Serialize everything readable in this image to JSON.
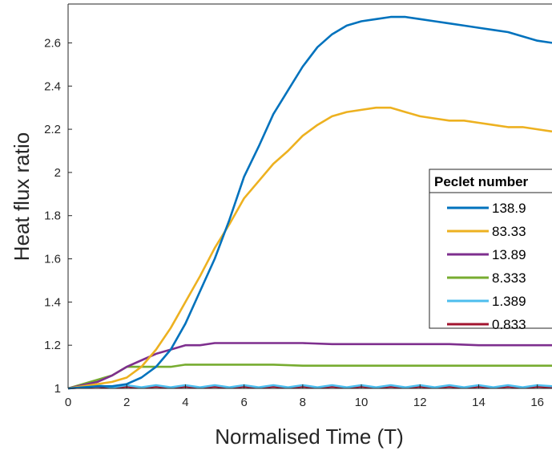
{
  "chart_data": {
    "type": "line",
    "xlabel": "Normalised Time (T)",
    "ylabel": "Heat flux ratio",
    "xlim": [
      0,
      16.5
    ],
    "ylim": [
      1,
      2.78
    ],
    "xticks": [
      "0",
      "2",
      "4",
      "6",
      "8",
      "10",
      "12",
      "14",
      "16"
    ],
    "yticks": [
      "1",
      "1.2",
      "1.4",
      "1.6",
      "1.8",
      "2",
      "2.2",
      "2.4",
      "2.6"
    ],
    "legend": {
      "title": "Peclet number",
      "placement": "right",
      "entries": [
        "138.9",
        "83.33",
        "13.89",
        "8.333",
        "1.389",
        "0.833"
      ]
    },
    "grid": false,
    "series": [
      {
        "name": "138.9",
        "color": "#0072BD",
        "x": [
          0,
          1,
          1.5,
          2,
          2.5,
          3,
          3.5,
          4,
          4.5,
          5,
          5.5,
          6,
          6.5,
          7,
          7.5,
          8,
          8.5,
          9,
          9.5,
          10,
          10.5,
          11,
          11.5,
          12,
          12.5,
          13,
          13.5,
          14,
          14.5,
          15,
          15.5,
          16,
          16.5
        ],
        "y": [
          1.0,
          1.01,
          1.01,
          1.02,
          1.05,
          1.1,
          1.18,
          1.3,
          1.45,
          1.6,
          1.78,
          1.98,
          2.12,
          2.27,
          2.38,
          2.49,
          2.58,
          2.64,
          2.68,
          2.7,
          2.71,
          2.72,
          2.72,
          2.71,
          2.7,
          2.69,
          2.68,
          2.67,
          2.66,
          2.65,
          2.63,
          2.61,
          2.6
        ]
      },
      {
        "name": "83.33",
        "color": "#EDB120",
        "x": [
          0,
          1,
          1.5,
          2,
          2.5,
          3,
          3.5,
          4,
          4.5,
          5,
          5.5,
          6,
          6.5,
          7,
          7.5,
          8,
          8.5,
          9,
          9.5,
          10,
          10.5,
          11,
          11.5,
          12,
          12.5,
          13,
          13.5,
          14,
          14.5,
          15,
          15.5,
          16,
          16.5
        ],
        "y": [
          1.0,
          1.02,
          1.03,
          1.05,
          1.1,
          1.18,
          1.28,
          1.4,
          1.52,
          1.65,
          1.76,
          1.88,
          1.96,
          2.04,
          2.1,
          2.17,
          2.22,
          2.26,
          2.28,
          2.29,
          2.3,
          2.3,
          2.28,
          2.26,
          2.25,
          2.24,
          2.24,
          2.23,
          2.22,
          2.21,
          2.21,
          2.2,
          2.19
        ]
      },
      {
        "name": "13.89",
        "color": "#7E2F8E",
        "x": [
          0,
          1,
          1.5,
          2,
          2.5,
          3,
          3.5,
          4,
          4.5,
          5,
          6,
          7,
          8,
          9,
          10,
          11,
          12,
          13,
          14,
          15,
          16,
          16.5
        ],
        "y": [
          1.0,
          1.03,
          1.06,
          1.1,
          1.13,
          1.16,
          1.18,
          1.2,
          1.2,
          1.21,
          1.21,
          1.21,
          1.21,
          1.205,
          1.205,
          1.205,
          1.205,
          1.205,
          1.2,
          1.2,
          1.2,
          1.2
        ]
      },
      {
        "name": "8.333",
        "color": "#77AC30",
        "x": [
          0,
          1,
          1.5,
          2,
          2.5,
          3,
          3.5,
          4,
          5,
          6,
          7,
          8,
          9,
          10,
          11,
          12,
          13,
          14,
          15,
          16,
          16.5
        ],
        "y": [
          1.0,
          1.04,
          1.06,
          1.1,
          1.1,
          1.1,
          1.1,
          1.11,
          1.11,
          1.11,
          1.11,
          1.105,
          1.105,
          1.105,
          1.105,
          1.105,
          1.105,
          1.105,
          1.105,
          1.105,
          1.105
        ]
      },
      {
        "name": "1.389",
        "color": "#4DBEEE",
        "x": [
          0,
          0.5,
          1,
          1.5,
          2,
          2.5,
          3,
          3.5,
          4,
          4.5,
          5,
          5.5,
          6,
          6.5,
          7,
          7.5,
          8,
          8.5,
          9,
          9.5,
          10,
          10.5,
          11,
          11.5,
          12,
          12.5,
          13,
          13.5,
          14,
          14.5,
          15,
          15.5,
          16,
          16.5
        ],
        "y": [
          1.0,
          1.01,
          1.015,
          1.005,
          1.015,
          1.005,
          1.015,
          1.005,
          1.015,
          1.005,
          1.015,
          1.005,
          1.015,
          1.005,
          1.015,
          1.005,
          1.015,
          1.005,
          1.015,
          1.005,
          1.015,
          1.005,
          1.015,
          1.005,
          1.015,
          1.005,
          1.015,
          1.005,
          1.015,
          1.005,
          1.015,
          1.005,
          1.015,
          1.01
        ]
      },
      {
        "name": "0.833",
        "color": "#A2142F",
        "x": [
          0,
          0.5,
          1,
          1.5,
          2,
          2.5,
          3,
          3.5,
          4,
          4.5,
          5,
          5.5,
          6,
          6.5,
          7,
          7.5,
          8,
          8.5,
          9,
          9.5,
          10,
          10.5,
          11,
          11.5,
          12,
          12.5,
          13,
          13.5,
          14,
          14.5,
          15,
          15.5,
          16,
          16.5
        ],
        "y": [
          1.0,
          1.005,
          1.008,
          1.003,
          1.008,
          1.003,
          1.008,
          1.003,
          1.008,
          1.003,
          1.008,
          1.003,
          1.008,
          1.003,
          1.008,
          1.003,
          1.008,
          1.003,
          1.008,
          1.003,
          1.008,
          1.003,
          1.008,
          1.003,
          1.008,
          1.003,
          1.008,
          1.003,
          1.008,
          1.003,
          1.008,
          1.003,
          1.008,
          1.005
        ]
      }
    ]
  }
}
